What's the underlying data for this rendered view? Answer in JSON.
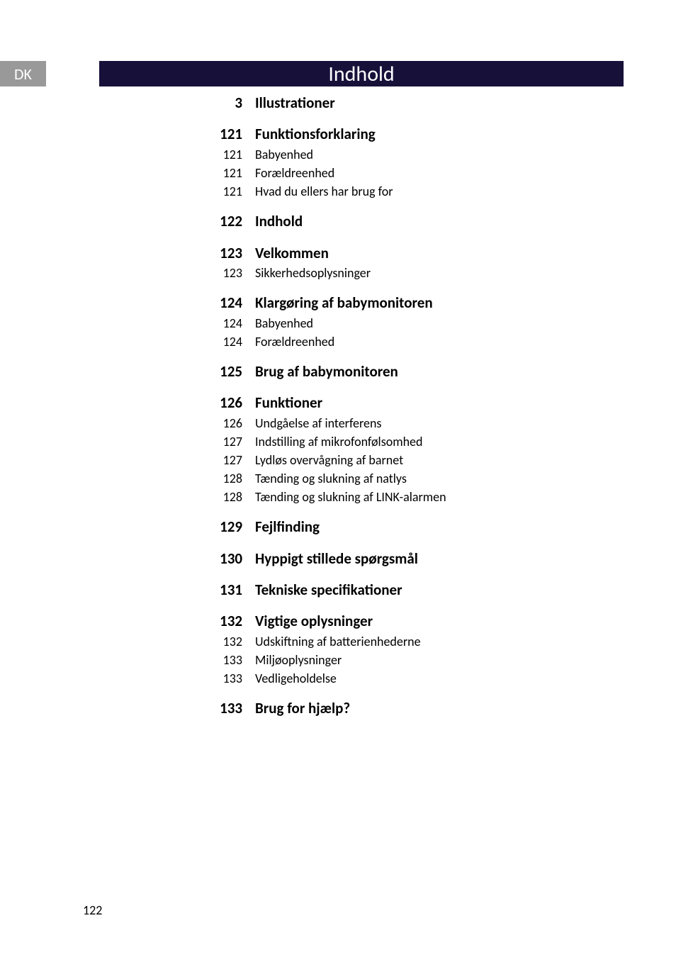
{
  "language_tab": "DK",
  "title": "Indhold",
  "page_number": "122",
  "toc": [
    {
      "page": "3",
      "title": "Illustrationer",
      "subs": []
    },
    {
      "page": "121",
      "title": "Funktionsforklaring",
      "subs": [
        {
          "page": "121",
          "title": "Babyenhed"
        },
        {
          "page": "121",
          "title": "Forældreenhed"
        },
        {
          "page": "121",
          "title": "Hvad du ellers har brug for"
        }
      ]
    },
    {
      "page": "122",
      "title": "Indhold",
      "subs": []
    },
    {
      "page": "123",
      "title": "Velkommen",
      "subs": [
        {
          "page": "123",
          "title": "Sikkerhedsoplysninger"
        }
      ]
    },
    {
      "page": "124",
      "title": "Klargøring af babymonitoren",
      "subs": [
        {
          "page": "124",
          "title": "Babyenhed"
        },
        {
          "page": "124",
          "title": "Forældreenhed"
        }
      ]
    },
    {
      "page": "125",
      "title": "Brug af babymonitoren",
      "subs": []
    },
    {
      "page": "126",
      "title": "Funktioner",
      "subs": [
        {
          "page": "126",
          "title": "Undgåelse af interferens"
        },
        {
          "page": "127",
          "title": "Indstilling af mikrofonfølsomhed"
        },
        {
          "page": "127",
          "title": "Lydløs overvågning af barnet"
        },
        {
          "page": "128",
          "title": "Tænding og slukning af natlys"
        },
        {
          "page": "128",
          "title": "Tænding og slukning af LINK-alarmen"
        }
      ]
    },
    {
      "page": "129",
      "title": "Fejlfinding",
      "subs": []
    },
    {
      "page": "130",
      "title": "Hyppigt stillede spørgsmål",
      "subs": []
    },
    {
      "page": "131",
      "title": "Tekniske specifikationer",
      "subs": []
    },
    {
      "page": "132",
      "title": "Vigtige oplysninger",
      "subs": [
        {
          "page": "132",
          "title": "Udskiftning af batterienhederne"
        },
        {
          "page": "133",
          "title": "Miljøoplysninger"
        },
        {
          "page": "133",
          "title": "Vedligeholdelse"
        }
      ]
    },
    {
      "page": "133",
      "title": "Brug for hjælp?",
      "subs": []
    }
  ]
}
